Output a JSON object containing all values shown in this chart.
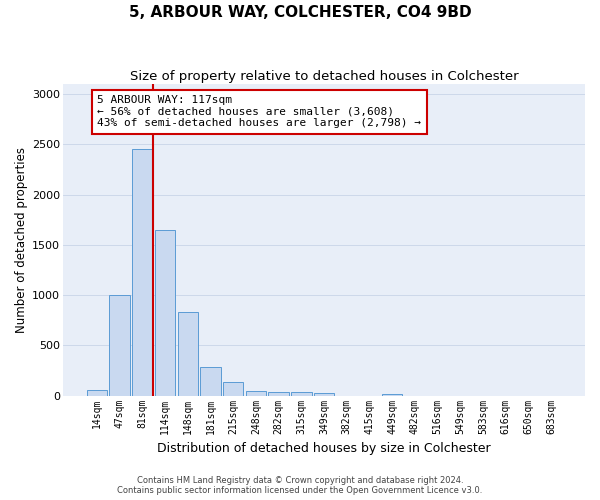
{
  "title": "5, ARBOUR WAY, COLCHESTER, CO4 9BD",
  "subtitle": "Size of property relative to detached houses in Colchester",
  "xlabel": "Distribution of detached houses by size in Colchester",
  "ylabel": "Number of detached properties",
  "categories": [
    "14sqm",
    "47sqm",
    "81sqm",
    "114sqm",
    "148sqm",
    "181sqm",
    "215sqm",
    "248sqm",
    "282sqm",
    "315sqm",
    "349sqm",
    "382sqm",
    "415sqm",
    "449sqm",
    "482sqm",
    "516sqm",
    "549sqm",
    "583sqm",
    "616sqm",
    "650sqm",
    "683sqm"
  ],
  "values": [
    55,
    1000,
    2450,
    1650,
    830,
    285,
    140,
    45,
    40,
    40,
    25,
    0,
    0,
    20,
    0,
    0,
    0,
    0,
    0,
    0,
    0
  ],
  "bar_color": "#c9d9f0",
  "bar_edge_color": "#5b9bd5",
  "vline_color": "#cc0000",
  "vline_index": 2,
  "annotation_text": "5 ARBOUR WAY: 117sqm\n← 56% of detached houses are smaller (3,608)\n43% of semi-detached houses are larger (2,798) →",
  "annotation_box_color": "#ffffff",
  "annotation_box_edge": "#cc0000",
  "ylim": [
    0,
    3100
  ],
  "yticks": [
    0,
    500,
    1000,
    1500,
    2000,
    2500,
    3000
  ],
  "grid_color": "#c8d4e8",
  "background_color": "#e8eef8",
  "footer_line1": "Contains HM Land Registry data © Crown copyright and database right 2024.",
  "footer_line2": "Contains public sector information licensed under the Open Government Licence v3.0.",
  "title_fontsize": 11,
  "subtitle_fontsize": 9.5,
  "xlabel_fontsize": 9,
  "ylabel_fontsize": 8.5
}
